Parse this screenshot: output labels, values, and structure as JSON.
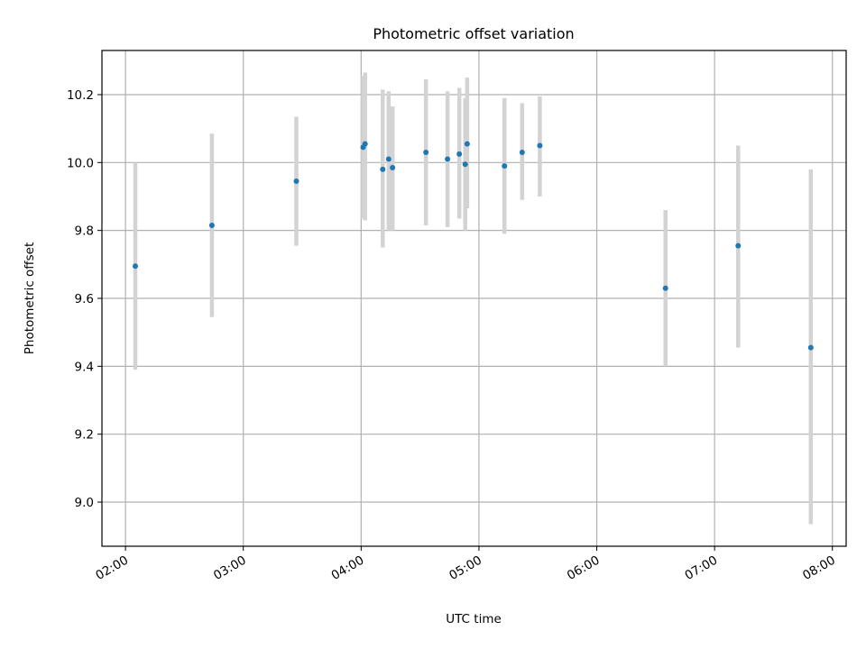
{
  "chart_data": {
    "type": "scatter",
    "title": "Photometric offset variation",
    "xlabel": "UTC time",
    "ylabel": "Photometric offset",
    "x_tick_labels": [
      "02:00",
      "03:00",
      "04:00",
      "05:00",
      "06:00",
      "07:00",
      "08:00"
    ],
    "y_tick_labels": [
      "9.0",
      "9.2",
      "9.4",
      "9.6",
      "9.8",
      "10.0",
      "10.2"
    ],
    "x_ticks": [
      "02:00",
      "03:00",
      "04:00",
      "05:00",
      "06:00",
      "07:00",
      "08:00"
    ],
    "y_ticks": [
      9.0,
      9.2,
      9.4,
      9.6,
      9.8,
      10.0,
      10.2
    ],
    "xlim": [
      "01:48",
      "08:07"
    ],
    "ylim": [
      8.87,
      10.33
    ],
    "grid": true,
    "marker_color": "#1f77b4",
    "errorbar_color": "#d3d3d3",
    "points": [
      {
        "x": "02:05",
        "y": 9.695,
        "lo": 9.39,
        "hi": 10.0
      },
      {
        "x": "02:44",
        "y": 9.815,
        "lo": 9.545,
        "hi": 10.085
      },
      {
        "x": "03:27",
        "y": 9.945,
        "lo": 9.755,
        "hi": 10.135
      },
      {
        "x": "04:01",
        "y": 10.045,
        "lo": 9.835,
        "hi": 10.255
      },
      {
        "x": "04:02",
        "y": 10.055,
        "lo": 9.83,
        "hi": 10.265
      },
      {
        "x": "04:11",
        "y": 9.98,
        "lo": 9.75,
        "hi": 10.215
      },
      {
        "x": "04:14",
        "y": 10.01,
        "lo": 9.8,
        "hi": 10.21
      },
      {
        "x": "04:16",
        "y": 9.985,
        "lo": 9.8,
        "hi": 10.165
      },
      {
        "x": "04:33",
        "y": 10.03,
        "lo": 9.815,
        "hi": 10.245
      },
      {
        "x": "04:44",
        "y": 10.01,
        "lo": 9.81,
        "hi": 10.21
      },
      {
        "x": "04:50",
        "y": 10.025,
        "lo": 9.835,
        "hi": 10.22
      },
      {
        "x": "04:53",
        "y": 9.995,
        "lo": 9.8,
        "hi": 10.19
      },
      {
        "x": "04:54",
        "y": 10.055,
        "lo": 9.865,
        "hi": 10.25
      },
      {
        "x": "05:13",
        "y": 9.99,
        "lo": 9.79,
        "hi": 10.19
      },
      {
        "x": "05:22",
        "y": 10.03,
        "lo": 9.89,
        "hi": 10.175
      },
      {
        "x": "05:31",
        "y": 10.05,
        "lo": 9.9,
        "hi": 10.195
      },
      {
        "x": "06:35",
        "y": 9.63,
        "lo": 9.4,
        "hi": 9.86
      },
      {
        "x": "07:12",
        "y": 9.755,
        "lo": 9.455,
        "hi": 10.05
      },
      {
        "x": "07:49",
        "y": 9.455,
        "lo": 8.935,
        "hi": 9.98
      }
    ]
  }
}
